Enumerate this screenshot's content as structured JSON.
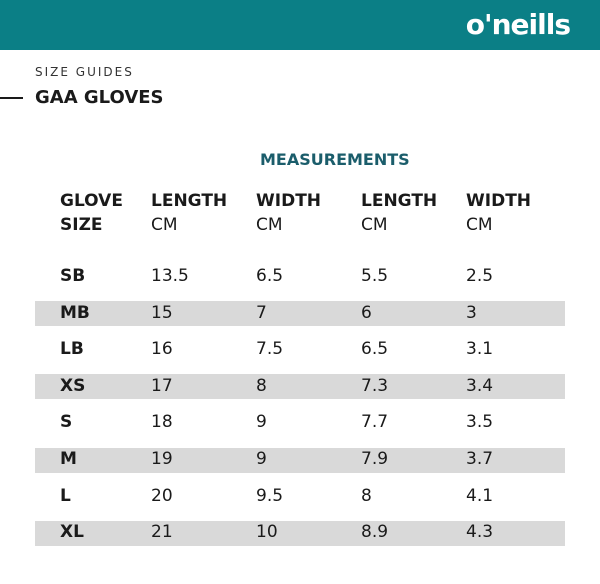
{
  "header": {
    "logo": "o'neills"
  },
  "page": {
    "subtitle": "SIZE GUIDES",
    "title": "GAA GLOVES"
  },
  "table": {
    "group_heading": "MEASUREMENTS",
    "columns": [
      {
        "top": "GLOVE",
        "bottom": "SIZE"
      },
      {
        "top": "LENGTH",
        "bottom": "CM"
      },
      {
        "top": "WIDTH",
        "bottom": "CM"
      },
      {
        "top": "LENGTH",
        "bottom": "CM"
      },
      {
        "top": "WIDTH",
        "bottom": "CM"
      }
    ],
    "rows": [
      [
        "SB",
        "13.5",
        "6.5",
        "5.5",
        "2.5"
      ],
      [
        "MB",
        "15",
        "7",
        "6",
        "3"
      ],
      [
        "LB",
        "16",
        "7.5",
        "6.5",
        "3.1"
      ],
      [
        "XS",
        "17",
        "8",
        "7.3",
        "3.4"
      ],
      [
        "S",
        "18",
        "9",
        "7.7",
        "3.5"
      ],
      [
        "M",
        "19",
        "9",
        "7.9",
        "3.7"
      ],
      [
        "L",
        "20",
        "9.5",
        "8",
        "4.1"
      ],
      [
        "XL",
        "21",
        "10",
        "8.9",
        "4.3"
      ]
    ]
  }
}
